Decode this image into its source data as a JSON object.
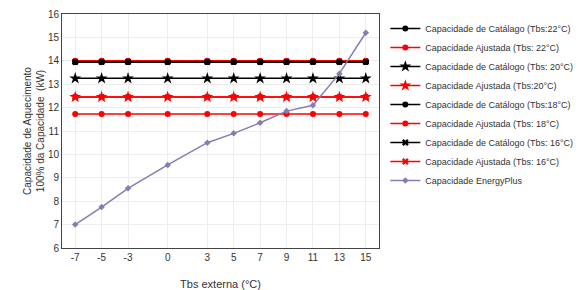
{
  "chart_data": {
    "type": "line",
    "x": [
      -7,
      -5,
      -3,
      0,
      3,
      5,
      7,
      9,
      11,
      13,
      15
    ],
    "series": [
      {
        "name": "Capacidade de Catálago (Tbs:22°C)",
        "color": "#000000",
        "marker": "circle",
        "values": [
          13.95,
          13.95,
          13.95,
          13.95,
          13.95,
          13.95,
          13.95,
          13.95,
          13.95,
          13.95,
          13.95
        ]
      },
      {
        "name": "Capacidade Ajustada (Tbs: 22°C)",
        "color": "#ff0000",
        "marker": "circle",
        "values": [
          14.0,
          14.0,
          14.0,
          14.0,
          14.0,
          14.0,
          14.0,
          14.0,
          14.0,
          14.0,
          14.0
        ]
      },
      {
        "name": "Capacidade de Catálogo (Tbs: 20°C)",
        "color": "#000000",
        "marker": "star",
        "values": [
          13.25,
          13.25,
          13.25,
          13.25,
          13.25,
          13.25,
          13.25,
          13.25,
          13.25,
          13.25,
          13.25
        ]
      },
      {
        "name": "Capacidade Ajustada (Tbs:20°C)",
        "color": "#ff0000",
        "marker": "star",
        "values": [
          12.45,
          12.45,
          12.45,
          12.45,
          12.45,
          12.45,
          12.45,
          12.45,
          12.45,
          12.45,
          12.45
        ]
      },
      {
        "name": "Capacidade de Catálogo (Tbs:18°C)",
        "color": "#000000",
        "marker": "circle",
        "values": [
          13.95,
          13.95,
          13.95,
          13.95,
          13.95,
          13.95,
          13.95,
          13.95,
          13.95,
          13.95,
          13.95
        ]
      },
      {
        "name": "Capacidade Ajustada (Tbs: 18°C)",
        "color": "#ff0000",
        "marker": "circle",
        "values": [
          11.73,
          11.73,
          11.73,
          11.73,
          11.73,
          11.73,
          11.73,
          11.73,
          11.73,
          11.73,
          11.73
        ]
      },
      {
        "name": "Capacidade de Catálogo (Tbs: 16°C)",
        "color": "#000000",
        "marker": "x",
        "values": [
          13.95,
          13.95,
          13.95,
          13.95,
          13.95,
          13.95,
          13.95,
          13.95,
          13.95,
          13.95,
          13.95
        ]
      },
      {
        "name": "Capacidade Ajustada (Tbs: 16°C)",
        "color": "#ff0000",
        "marker": "x",
        "values": [
          12.45,
          12.45,
          12.45,
          12.45,
          12.45,
          12.45,
          12.45,
          12.45,
          12.45,
          12.45,
          12.45
        ]
      },
      {
        "name": "Capacidade EnergyPlus",
        "color": "#8B7BB5",
        "marker": "diamond",
        "values": [
          7.0,
          7.75,
          8.55,
          9.55,
          10.5,
          10.9,
          11.35,
          11.85,
          12.1,
          13.45,
          15.2
        ]
      }
    ],
    "xlabel": "Tbs externa (°C)",
    "ylabel": "Capacidade de Aquecimento\n100% da Capacidade  (kW)",
    "xlim": [
      -8,
      16
    ],
    "ylim": [
      6,
      16
    ],
    "xticks": [
      -7,
      -5,
      -3,
      0,
      3,
      5,
      7,
      9,
      11,
      13,
      15
    ],
    "yticks": [
      6,
      7,
      8,
      9,
      10,
      11,
      12,
      13,
      14,
      15,
      16
    ],
    "grid": true,
    "legend": "right"
  }
}
